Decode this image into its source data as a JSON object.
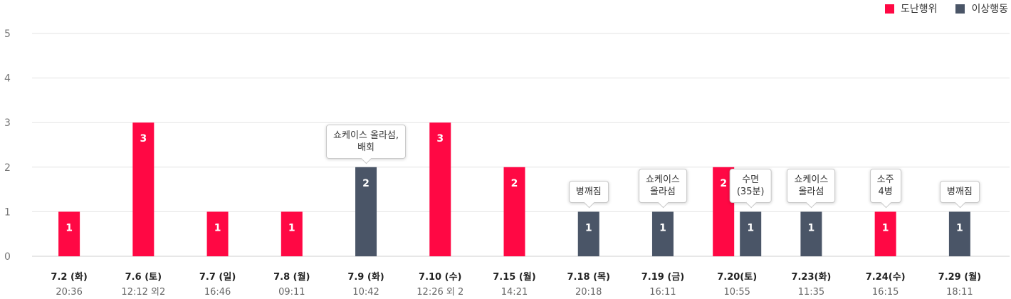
{
  "chart_data": {
    "type": "bar",
    "ylim": [
      0,
      5
    ],
    "yticks": [
      "0",
      "1",
      "2",
      "3",
      "4",
      "5"
    ],
    "grid": true,
    "legend_position": "top-right",
    "legend": [
      {
        "name": "도난행위",
        "color": "#ff0844"
      },
      {
        "name": "이상행동",
        "color": "#4a5567"
      }
    ],
    "categories": [
      {
        "date": "7.2 (화)",
        "time": "20:36"
      },
      {
        "date": "7.6 (토)",
        "time": "12:12 외2"
      },
      {
        "date": "7.7 (일)",
        "time": "16:46"
      },
      {
        "date": "7.8 (월)",
        "time": "09:11"
      },
      {
        "date": "7.9 (화)",
        "time": "10:42"
      },
      {
        "date": "7.10 (수)",
        "time": "12:26 외 2"
      },
      {
        "date": "7.15 (월)",
        "time": "14:21"
      },
      {
        "date": "7.18 (목)",
        "time": "20:18"
      },
      {
        "date": "7.19 (금)",
        "time": "16:11"
      },
      {
        "date": "7.20(토)",
        "time": "10:55"
      },
      {
        "date": "7.23(화)",
        "time": "11:35"
      },
      {
        "date": "7.24(수)",
        "time": "16:15"
      },
      {
        "date": "7.29 (월)",
        "time": "18:11"
      }
    ],
    "series": [
      {
        "name": "도난행위",
        "values": [
          1,
          3,
          1,
          1,
          null,
          3,
          2,
          null,
          null,
          2,
          null,
          1,
          null
        ]
      },
      {
        "name": "이상행동",
        "values": [
          null,
          null,
          null,
          null,
          2,
          null,
          null,
          1,
          1,
          1,
          1,
          null,
          1
        ]
      }
    ],
    "annotations": [
      {
        "category_index": 4,
        "series": "이상행동",
        "text": "쇼케이스 올라섬,\n배회"
      },
      {
        "category_index": 7,
        "series": "이상행동",
        "text": "병깨짐"
      },
      {
        "category_index": 8,
        "series": "이상행동",
        "text": "쇼케이스\n올라섬"
      },
      {
        "category_index": 9,
        "series": "이상행동",
        "text": "수면\n(35분)"
      },
      {
        "category_index": 10,
        "series": "이상행동",
        "text": "쇼케이스\n올라섬"
      },
      {
        "category_index": 11,
        "series": "도난행위",
        "text": "소주\n4병"
      },
      {
        "category_index": 12,
        "series": "이상행동",
        "text": "병깨짐"
      }
    ]
  }
}
